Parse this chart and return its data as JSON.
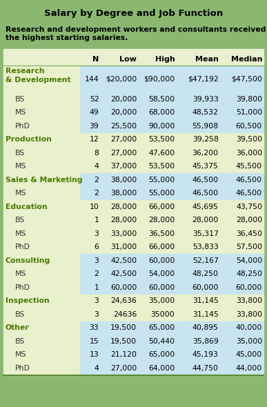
{
  "title": "Salary by Degree and Job Function",
  "subtitle": "Research and development workers and consultants received\nthe highest starting salaries.",
  "col_headers": [
    "N",
    "Low",
    "High",
    "Mean",
    "Median"
  ],
  "rows": [
    {
      "label": "Research\n& Development",
      "indent": false,
      "bold": true,
      "n": "144",
      "low": "$20,000",
      "high": "$90,000",
      "mean": "$47,192",
      "median": "$47,500",
      "data_bg": "blue",
      "double_height": true
    },
    {
      "label": "BS",
      "indent": true,
      "bold": false,
      "n": "52",
      "low": "20,000",
      "high": "58,500",
      "mean": "39,933",
      "median": "39,800",
      "data_bg": "blue",
      "double_height": false
    },
    {
      "label": "MS",
      "indent": true,
      "bold": false,
      "n": "49",
      "low": "20,000",
      "high": "68,000",
      "mean": "48,532",
      "median": "51,000",
      "data_bg": "blue",
      "double_height": false
    },
    {
      "label": "PhD",
      "indent": true,
      "bold": false,
      "n": "39",
      "low": "25,500",
      "high": "90,000",
      "mean": "55,908",
      "median": "60,500",
      "data_bg": "blue",
      "double_height": false
    },
    {
      "label": "Production",
      "indent": false,
      "bold": true,
      "n": "12",
      "low": "27,000",
      "high": "53,500",
      "mean": "39,258",
      "median": "39,500",
      "data_bg": "yellow",
      "double_height": false
    },
    {
      "label": "BS",
      "indent": true,
      "bold": false,
      "n": "8",
      "low": "27,000",
      "high": "47,600",
      "mean": "36,200",
      "median": "36,000",
      "data_bg": "yellow",
      "double_height": false
    },
    {
      "label": "MS",
      "indent": true,
      "bold": false,
      "n": "4",
      "low": "37,000",
      "high": "53,500",
      "mean": "45,375",
      "median": "45,500",
      "data_bg": "yellow",
      "double_height": false
    },
    {
      "label": "Sales & Marketing",
      "indent": false,
      "bold": true,
      "n": "2",
      "low": "38,000",
      "high": "55,000",
      "mean": "46,500",
      "median": "46,500",
      "data_bg": "blue",
      "double_height": false
    },
    {
      "label": "MS",
      "indent": true,
      "bold": false,
      "n": "2",
      "low": "38,000",
      "high": "55,000",
      "mean": "46,500",
      "median": "46,500",
      "data_bg": "blue",
      "double_height": false
    },
    {
      "label": "Education",
      "indent": false,
      "bold": true,
      "n": "10",
      "low": "28,000",
      "high": "66,000",
      "mean": "45,695",
      "median": "43,750",
      "data_bg": "yellow",
      "double_height": false
    },
    {
      "label": "BS",
      "indent": true,
      "bold": false,
      "n": "1",
      "low": "28,000",
      "high": "28,000",
      "mean": "28,000",
      "median": "28,000",
      "data_bg": "yellow",
      "double_height": false
    },
    {
      "label": "MS",
      "indent": true,
      "bold": false,
      "n": "3",
      "low": "33,000",
      "high": "36,500",
      "mean": "35,317",
      "median": "36,450",
      "data_bg": "yellow",
      "double_height": false
    },
    {
      "label": "PhD",
      "indent": true,
      "bold": false,
      "n": "6",
      "low": "31,000",
      "high": "66,000",
      "mean": "53,833",
      "median": "57,500",
      "data_bg": "yellow",
      "double_height": false
    },
    {
      "label": "Consulting",
      "indent": false,
      "bold": true,
      "n": "3",
      "low": "42,500",
      "high": "60,000",
      "mean": "52,167",
      "median": "54,000",
      "data_bg": "blue",
      "double_height": false
    },
    {
      "label": "MS",
      "indent": true,
      "bold": false,
      "n": "2",
      "low": "42,500",
      "high": "54,000",
      "mean": "48,250",
      "median": "48,250",
      "data_bg": "blue",
      "double_height": false
    },
    {
      "label": "PhD",
      "indent": true,
      "bold": false,
      "n": "1",
      "low": "60,000",
      "high": "60,000",
      "mean": "60,000",
      "median": "60,000",
      "data_bg": "blue",
      "double_height": false
    },
    {
      "label": "Inspection",
      "indent": false,
      "bold": true,
      "n": "3",
      "low": "24,636",
      "high": "35,000",
      "mean": "31,145",
      "median": "33,800",
      "data_bg": "yellow",
      "double_height": false
    },
    {
      "label": "BS",
      "indent": true,
      "bold": false,
      "n": "3",
      "low": "24636",
      "high": "35000",
      "mean": "31,145",
      "median": "33,800",
      "data_bg": "yellow",
      "double_height": false
    },
    {
      "label": "Other",
      "indent": false,
      "bold": true,
      "n": "33",
      "low": "19,500",
      "high": "65,000",
      "mean": "40,895",
      "median": "40,000",
      "data_bg": "blue",
      "double_height": false
    },
    {
      "label": "BS",
      "indent": true,
      "bold": false,
      "n": "15",
      "low": "19,500",
      "high": "50,440",
      "mean": "35,869",
      "median": "35,000",
      "data_bg": "blue",
      "double_height": false
    },
    {
      "label": "MS",
      "indent": true,
      "bold": false,
      "n": "13",
      "low": "21,120",
      "high": "65,000",
      "mean": "45,193",
      "median": "45,000",
      "data_bg": "blue",
      "double_height": false
    },
    {
      "label": "PhD",
      "indent": true,
      "bold": false,
      "n": "4",
      "low": "27,000",
      "high": "64,000",
      "mean": "44,750",
      "median": "44,000",
      "data_bg": "blue",
      "double_height": false
    }
  ],
  "outer_bg": "#8ab870",
  "title_bg": "#8ab870",
  "col_header_bg": "#e8f0d0",
  "label_col_bg": "#e8f0cc",
  "data_blue_bg": "#c8e4f0",
  "data_yellow_bg": "#e8f0cc",
  "bold_label_color": "#4a7a00",
  "normal_label_color": "#333333",
  "header_line_color": "#7aaa50",
  "bottom_line_color": "#5a8a30"
}
